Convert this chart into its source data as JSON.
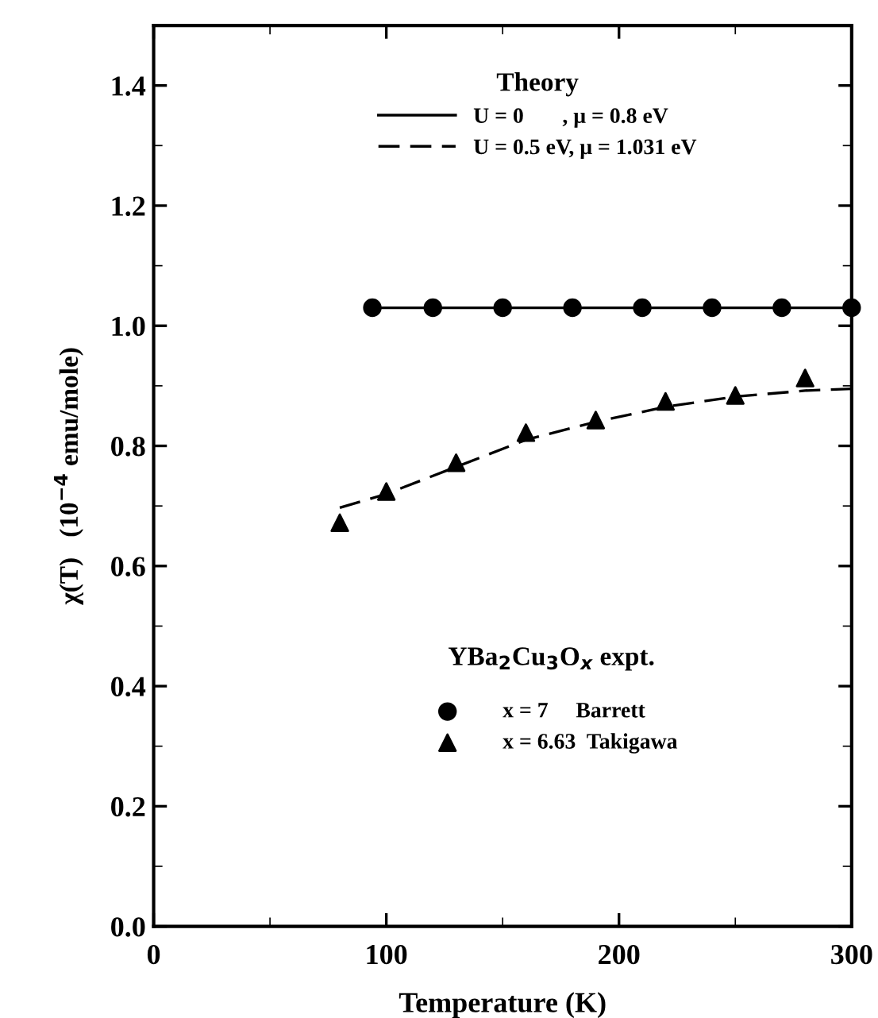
{
  "chart_data": {
    "type": "line",
    "xlabel": "Temperature (K)",
    "ylabel": "χ(T)   (10$^{−4}$ emu/mole)",
    "annotations": [
      "Theory",
      "YBa$_{2}$Cu$_{3}$O$_{x}$ expt."
    ],
    "xlim": [
      0,
      300
    ],
    "xticks": [
      0,
      100,
      200,
      300
    ],
    "ylim": [
      0,
      1.5
    ],
    "yticks": [
      {
        "value": 0,
        "label": "0.0"
      },
      0.2,
      0.4,
      0.6,
      0.8,
      {
        "value": 1,
        "label": "1.0"
      },
      1.2,
      1.4
    ],
    "grid": false,
    "legend": "top",
    "series": [
      {
        "name": "U = 0       , μ = 0.8 eV",
        "color": "#000000",
        "line_style": "solid",
        "marker": "none",
        "x": [
          93,
          300
        ],
        "values": [
          1.03,
          1.03
        ]
      },
      {
        "name": "U = 0.5 eV, μ = 1.031 eV",
        "color": "#000000",
        "line_style": "dashed",
        "marker": "none",
        "x": [
          80,
          100,
          130,
          160,
          190,
          220,
          250,
          280,
          300
        ],
        "values": [
          0.697,
          0.72,
          0.765,
          0.81,
          0.84,
          0.865,
          0.882,
          0.892,
          0.895
        ]
      },
      {
        "name": "x = 7     Barrett",
        "type": "scatter",
        "color": "#000000",
        "marker": "circle",
        "x": [
          94,
          120,
          150,
          180,
          210,
          240,
          270,
          300
        ],
        "values": [
          1.03,
          1.03,
          1.03,
          1.03,
          1.03,
          1.03,
          1.03,
          1.03
        ]
      },
      {
        "name": "x = 6.63  Takigawa",
        "type": "scatter",
        "color": "#000000",
        "marker": "triangle",
        "x": [
          80,
          100,
          130,
          160,
          190,
          220,
          250,
          280
        ],
        "values": [
          0.672,
          0.724,
          0.772,
          0.822,
          0.843,
          0.874,
          0.884,
          0.913
        ]
      }
    ]
  }
}
